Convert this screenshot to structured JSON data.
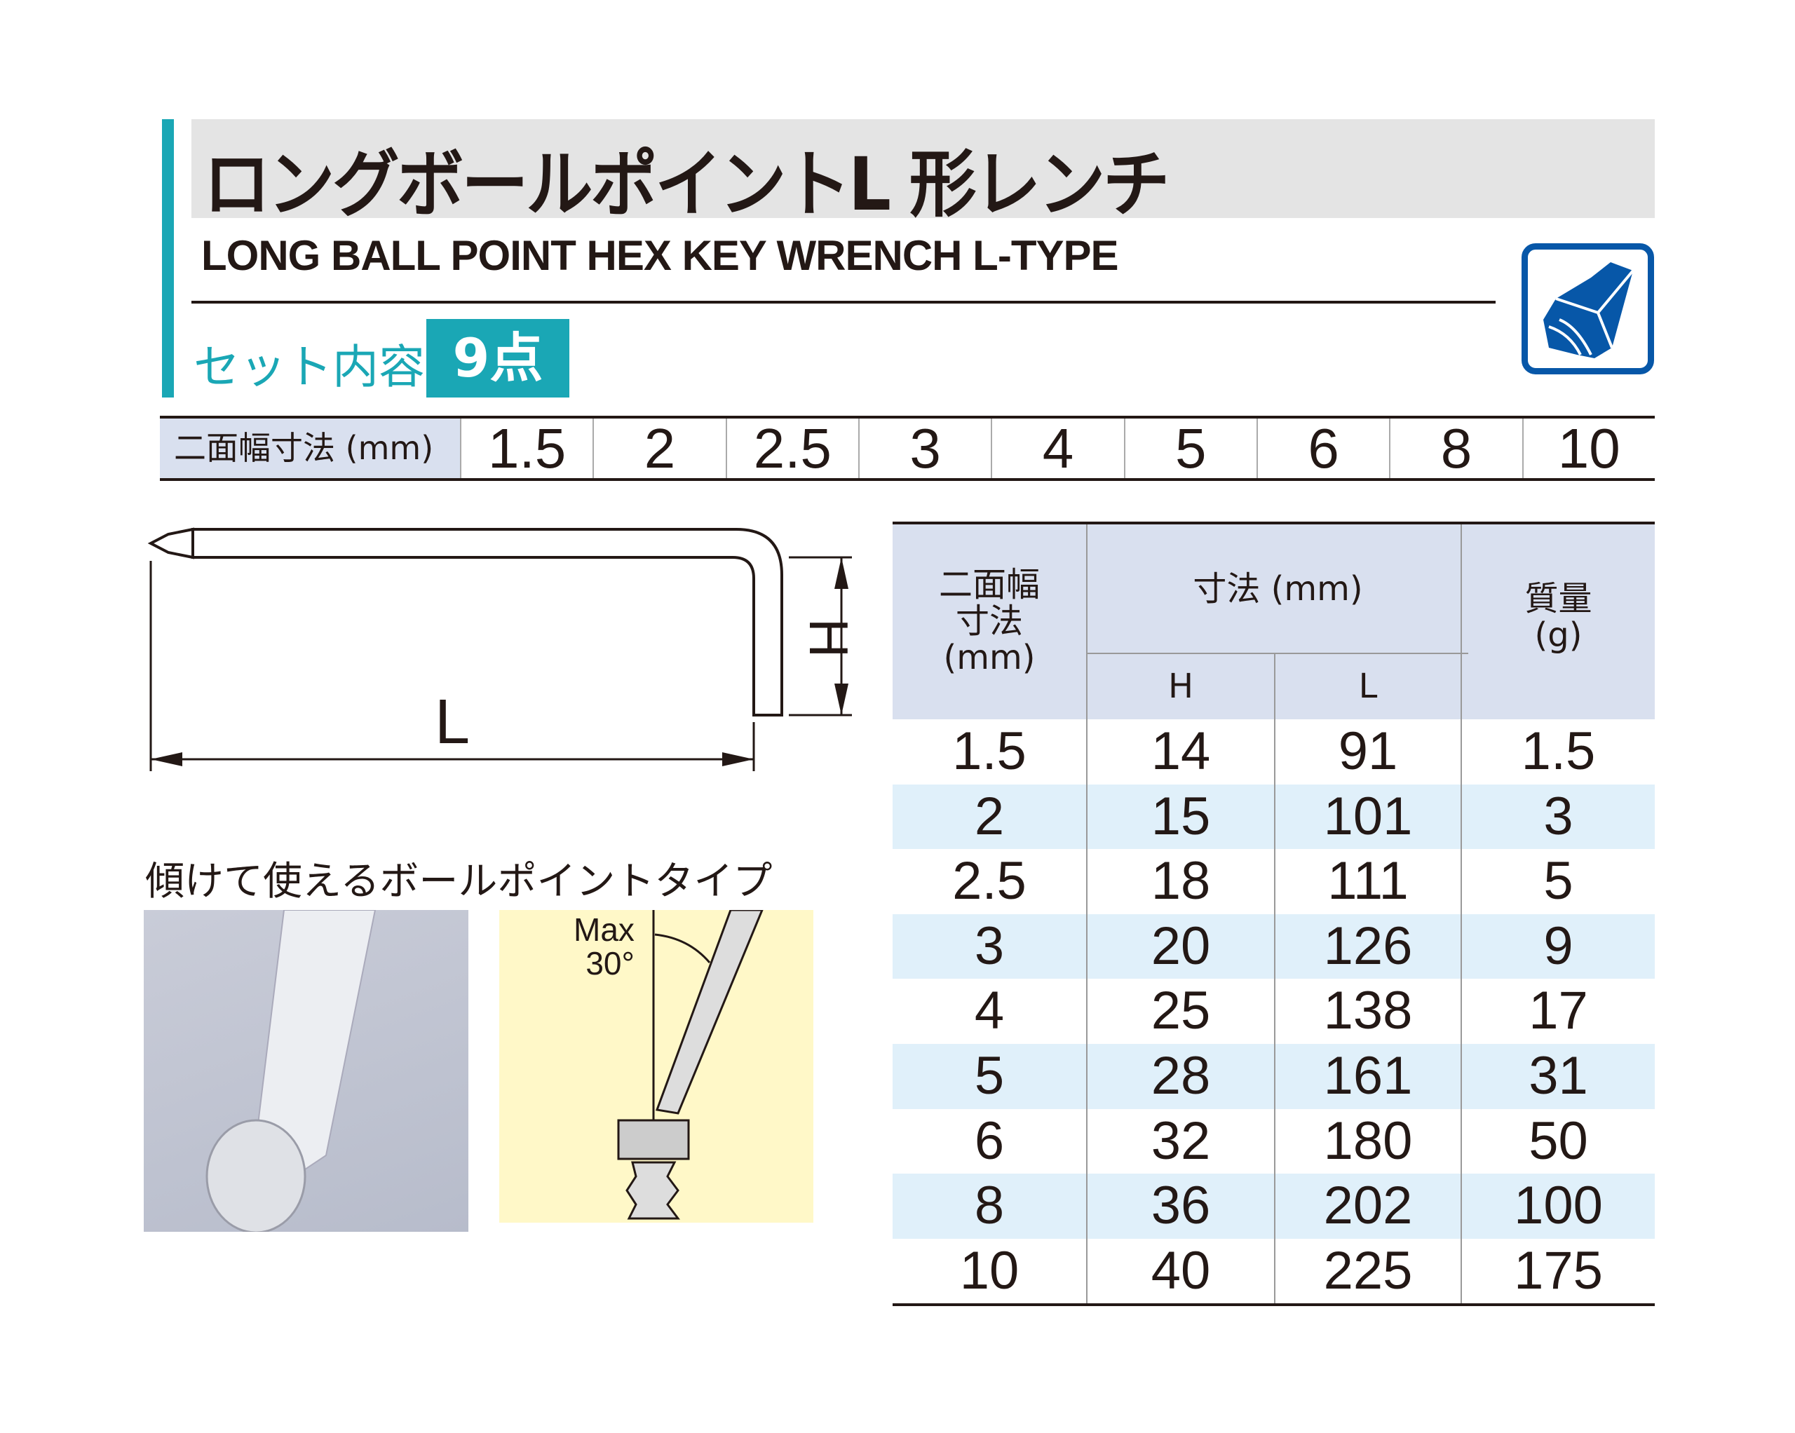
{
  "header": {
    "title": "ロングボールポイントL 形レンチ",
    "subtitle": "LONG BALL POINT HEX KEY WRENCH L-TYPE",
    "set_label": "セット内容",
    "set_count": "9点",
    "icon": "hex-key-icon"
  },
  "sizes": {
    "label": "二面幅寸法 (mm)",
    "values": [
      "1.5",
      "2",
      "2.5",
      "3",
      "4",
      "5",
      "6",
      "8",
      "10"
    ]
  },
  "diagram": {
    "h_label": "H",
    "l_label": "L"
  },
  "feature": {
    "caption": "傾けて使えるボールポイントタイプ",
    "angle_label_1": "Max",
    "angle_label_2": "30°"
  },
  "table": {
    "col_size": "二面幅\n寸法\n(mm)",
    "col_dims": "寸法 (mm)",
    "col_h": "H",
    "col_l": "L",
    "col_mass": "質量\n(g)",
    "rows": [
      {
        "size": "1.5",
        "h": "14",
        "l": "91",
        "mass": "1.5"
      },
      {
        "size": "2",
        "h": "15",
        "l": "101",
        "mass": "3"
      },
      {
        "size": "2.5",
        "h": "18",
        "l": "111",
        "mass": "5"
      },
      {
        "size": "3",
        "h": "20",
        "l": "126",
        "mass": "9"
      },
      {
        "size": "4",
        "h": "25",
        "l": "138",
        "mass": "17"
      },
      {
        "size": "5",
        "h": "28",
        "l": "161",
        "mass": "31"
      },
      {
        "size": "6",
        "h": "32",
        "l": "180",
        "mass": "50"
      },
      {
        "size": "8",
        "h": "36",
        "l": "202",
        "mass": "100"
      },
      {
        "size": "10",
        "h": "40",
        "l": "225",
        "mass": "175"
      }
    ]
  },
  "colors": {
    "teal": "#1aa7b5",
    "blue": "#0757a8",
    "header_bg": "#d9e0ef",
    "row_alt": "#e0f0fa",
    "yellow": "#fff8c8"
  }
}
